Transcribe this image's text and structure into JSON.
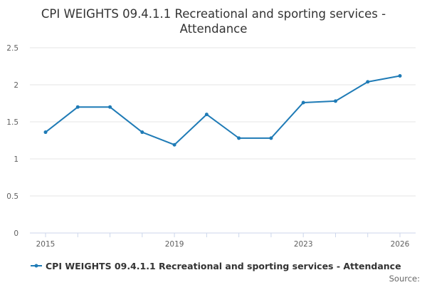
{
  "chart_data": {
    "type": "line",
    "title_lines": [
      "CPI WEIGHTS 09.4.1.1 Recreational and sporting services -",
      "Attendance"
    ],
    "xlabel": "",
    "ylabel": "",
    "x": [
      2015,
      2016,
      2017,
      2018,
      2019,
      2020,
      2021,
      2022,
      2023,
      2024,
      2025,
      2026
    ],
    "x_tick_labels": [
      "2015",
      "2019",
      "2023",
      "2026"
    ],
    "x_tick_values": [
      2015,
      2019,
      2023,
      2026
    ],
    "xlim": [
      2015,
      2026
    ],
    "ylim": [
      0,
      2.5
    ],
    "y_tick_labels": [
      "0",
      "0.5",
      "1",
      "1.5",
      "2",
      "2.5"
    ],
    "y_tick_values": [
      0,
      0.5,
      1,
      1.5,
      2,
      2.5
    ],
    "grid": true,
    "legend_position": "bottom-center",
    "series": [
      {
        "name": "CPI WEIGHTS 09.4.1.1 Recreational and sporting services - Attendance",
        "color": "#1f7bb6",
        "values": [
          1.36,
          1.7,
          1.7,
          1.36,
          1.19,
          1.6,
          1.28,
          1.28,
          1.76,
          1.78,
          2.04,
          2.12
        ]
      }
    ],
    "credit": "Source:"
  }
}
